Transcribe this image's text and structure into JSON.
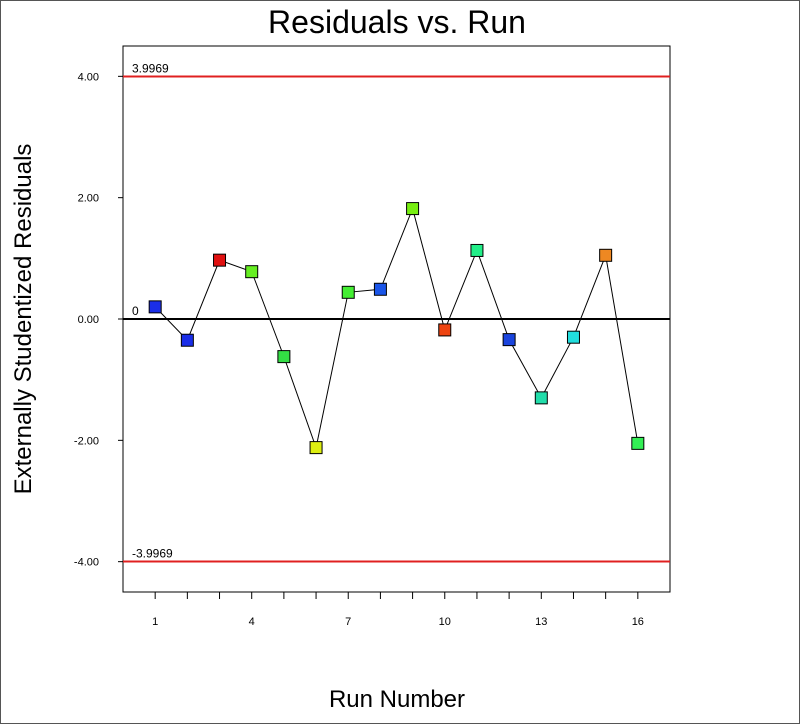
{
  "chart_data": {
    "type": "line",
    "title": "Residuals vs. Run",
    "xlabel": "Run Number",
    "ylabel": "Externally Studentized Residuals",
    "xlim": [
      0,
      17
    ],
    "ylim": [
      -4.5,
      4.5
    ],
    "x_ticks": [
      1,
      4,
      7,
      10,
      13,
      16
    ],
    "y_ticks": [
      4.0,
      2.0,
      0.0,
      -2.0,
      -4.0
    ],
    "y_tick_labels": [
      "4.00",
      "2.00",
      "0.00",
      "-2.00",
      "-4.00"
    ],
    "reference_lines": [
      {
        "y": 3.9969,
        "label": "3.9969",
        "color": "#e02020"
      },
      {
        "y": 0,
        "label": "0",
        "color": "#000000"
      },
      {
        "y": -3.9969,
        "label": "-3.9969",
        "color": "#e02020"
      }
    ],
    "series": [
      {
        "x": [
          1,
          2,
          3,
          4,
          5,
          6,
          7,
          8,
          9,
          10,
          11,
          12,
          13,
          14,
          15,
          16
        ],
        "values": [
          0.2,
          -0.35,
          0.97,
          0.78,
          -0.62,
          -2.12,
          0.44,
          0.49,
          1.82,
          -0.18,
          1.13,
          -0.34,
          -1.3,
          -0.3,
          1.05,
          -2.05
        ],
        "colors": [
          "#1a2ee8",
          "#1a2ee8",
          "#e01010",
          "#66ee22",
          "#33dd44",
          "#ddee11",
          "#44ee33",
          "#1a55e8",
          "#77ee11",
          "#ee4411",
          "#22ee88",
          "#1a44dd",
          "#22ddaa",
          "#22dddd",
          "#ee8822",
          "#33ee55"
        ]
      }
    ],
    "grid": false
  }
}
